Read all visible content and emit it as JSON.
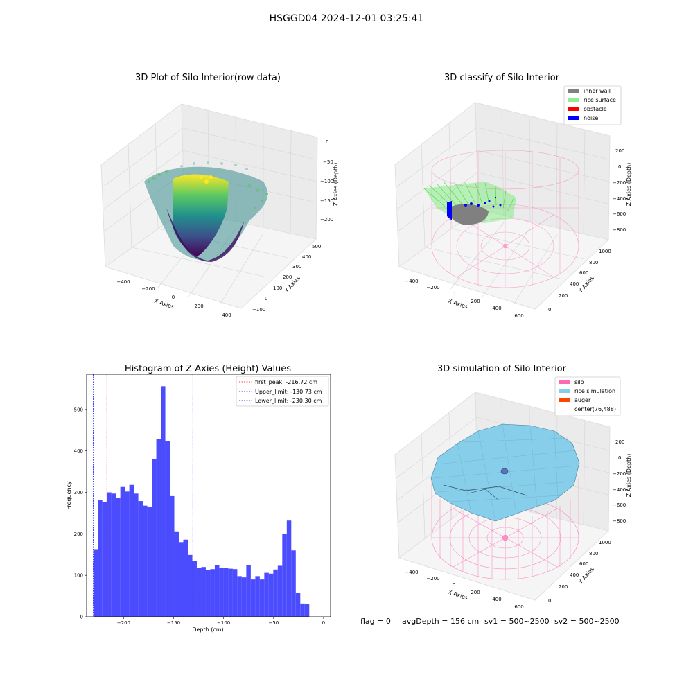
{
  "figure": {
    "suptitle": "HSGGD04 2024-12-01 03:25:41",
    "footer": {
      "flag": "flag = 0",
      "avg_depth": "avgDepth = 156 cm",
      "sv1": "sv1 = 500~2500",
      "sv2": "sv2 = 500~2500"
    }
  },
  "colors": {
    "hist_bar": "#4c4cff",
    "first_peak": "#ff0000",
    "limits": "#0000ff",
    "inner_wall": "#808080",
    "rice_surface": "#90ee90",
    "obstacle": "#ff0000",
    "noise": "#0000ff",
    "silo": "#ff69b4",
    "rice_simulation": "#87ceeb",
    "auger": "#ff4500"
  },
  "chart_data": [
    {
      "type": "scatter3d",
      "title": "3D Plot of Silo Interior(row data)",
      "xlabel": "X Axies",
      "ylabel": "Y Axies",
      "zlabel": "Z Axies (Depth)",
      "x_ticks": [
        "−400",
        "−200",
        "0",
        "200",
        "400"
      ],
      "y_ticks": [
        "−100",
        "0",
        "100",
        "200",
        "300",
        "400",
        "500"
      ],
      "z_ticks": [
        "0",
        "−50",
        "−100",
        "−150",
        "−200"
      ],
      "colormap": "viridis"
    },
    {
      "type": "scatter3d",
      "title": "3D classify of Silo Interior",
      "xlabel": "X Axies",
      "ylabel": "Y Axies",
      "zlabel": "Z Axies (Depth)",
      "x_ticks": [
        "−400",
        "−200",
        "0",
        "200",
        "400",
        "600"
      ],
      "y_ticks": [
        "0",
        "200",
        "400",
        "600",
        "800",
        "1000"
      ],
      "z_ticks": [
        "200",
        "0",
        "−200",
        "−400",
        "−600",
        "−800"
      ],
      "legend": {
        "placement": "top-right",
        "entries": [
          {
            "label": "inner wall",
            "color": "#808080"
          },
          {
            "label": "rice surface",
            "color": "#90ee90"
          },
          {
            "label": "obstacle",
            "color": "#ff0000"
          },
          {
            "label": "noise",
            "color": "#0000ff"
          }
        ]
      }
    },
    {
      "type": "bar",
      "title": "Histogram of Z-Axies (Height) Values",
      "xlabel": "Depth (cm)",
      "ylabel": "Frequency",
      "xlim": [
        -237,
        7
      ],
      "ylim": [
        0,
        585
      ],
      "x_ticks": [
        -200,
        -150,
        -100,
        -50,
        0
      ],
      "x_tick_labels": [
        "−200",
        "−150",
        "−100",
        "−50",
        "0"
      ],
      "y_ticks": [
        0,
        100,
        200,
        300,
        400,
        500
      ],
      "y_tick_labels": [
        "0",
        "100",
        "200",
        "300",
        "400",
        "500"
      ],
      "bin_start": -230.3,
      "bin_width": 4.5,
      "values": [
        163,
        281,
        277,
        300,
        297,
        286,
        313,
        302,
        318,
        297,
        279,
        268,
        265,
        381,
        429,
        556,
        424,
        291,
        206,
        180,
        186,
        149,
        135,
        117,
        120,
        112,
        115,
        124,
        118,
        117,
        116,
        115,
        98,
        95,
        124,
        90,
        98,
        90,
        106,
        104,
        114,
        123,
        200,
        232,
        160,
        58,
        32,
        31
      ],
      "lines": [
        {
          "label": "first_peak: -216.72 cm",
          "x": -216.72,
          "color": "#ff0000"
        },
        {
          "label": "Upper_limit: -130.73 cm",
          "x": -130.73,
          "color": "#0000ff"
        },
        {
          "label": "Lower_limit: -230.30 cm",
          "x": -230.3,
          "color": "#0000ff"
        }
      ],
      "legend": {
        "placement": "top-right"
      }
    },
    {
      "type": "surface3d",
      "title": "3D simulation of Silo Interior",
      "xlabel": "X Axies",
      "ylabel": "Y Axies",
      "zlabel": "Z Axies (Depth)",
      "x_ticks": [
        "−400",
        "−200",
        "0",
        "200",
        "400",
        "600"
      ],
      "y_ticks": [
        "0",
        "200",
        "400",
        "600",
        "800",
        "1000"
      ],
      "z_ticks": [
        "200",
        "0",
        "−200",
        "−400",
        "−600",
        "−800"
      ],
      "legend": {
        "placement": "top-right",
        "entries": [
          {
            "label": "silo",
            "color": "#ff69b4"
          },
          {
            "label": "rice simulation",
            "color": "#87ceeb"
          },
          {
            "label": "auger",
            "color": "#ff4500"
          },
          {
            "label": "center(76,488)",
            "color": ""
          }
        ]
      }
    }
  ]
}
